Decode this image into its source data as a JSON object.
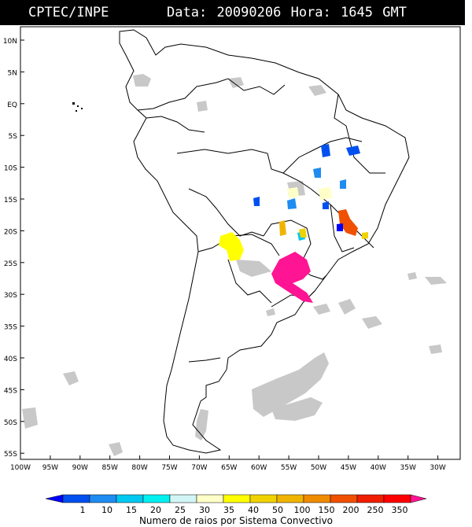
{
  "header": {
    "source": "CPTEC/INPE",
    "date_label": "Data:",
    "date": "20090206",
    "hour_label": "Hora:",
    "hour": "1645",
    "tz": "GMT"
  },
  "lat_labels": [
    "10N",
    "5N",
    "EQ",
    "5S",
    "10S",
    "15S",
    "20S",
    "25S",
    "30S",
    "35S",
    "40S",
    "45S",
    "50S",
    "55S"
  ],
  "lon_labels": [
    "100W",
    "95W",
    "90W",
    "85W",
    "80W",
    "75W",
    "70W",
    "65W",
    "60W",
    "55W",
    "50W",
    "45W",
    "40W",
    "35W",
    "30W"
  ],
  "legend": {
    "values": [
      "1",
      "10",
      "15",
      "20",
      "25",
      "30",
      "35",
      "40",
      "50",
      "100",
      "150",
      "200",
      "250",
      "350"
    ],
    "colors": [
      "#0000ff",
      "#0050f0",
      "#1e8cf0",
      "#00c8f0",
      "#00f0f0",
      "#d2f5f5",
      "#ffffc8",
      "#ffff00",
      "#f0d200",
      "#f0b400",
      "#f08c00",
      "#f05000",
      "#f01e00",
      "#ff0000",
      "#ff1493"
    ],
    "caption": "Numero de raios por Sistema Convectivo"
  },
  "colors": {
    "cloud": "#c8c8c8",
    "outline": "#000000"
  }
}
